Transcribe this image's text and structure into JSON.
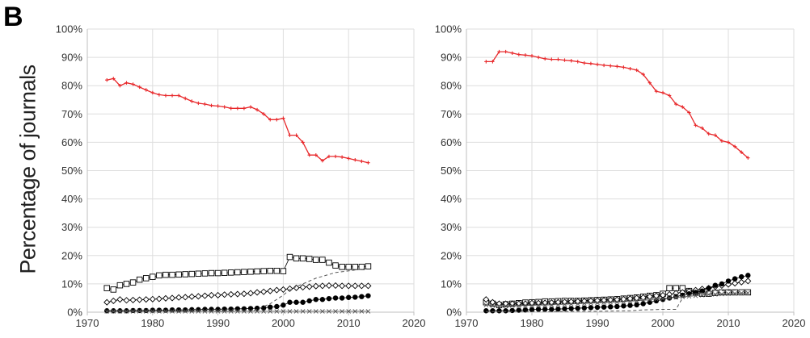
{
  "figure": {
    "panel_label": "B",
    "ylabel": "Percentage of journals"
  },
  "colors": {
    "red_series": "#e8282b",
    "black": "#000000",
    "grid": "#dedede",
    "axis": "#bfbfbf",
    "dashed": "#555555"
  },
  "chart_data": [
    {
      "type": "line",
      "xlim": [
        1970,
        2020
      ],
      "ylim": [
        0,
        100
      ],
      "xticks": [
        "1970",
        "1980",
        "1990",
        "2000",
        "2010",
        "2020"
      ],
      "yticks": [
        "0%",
        "10%",
        "20%",
        "30%",
        "40%",
        "50%",
        "60%",
        "70%",
        "80%",
        "90%",
        "100%"
      ],
      "grid": true,
      "series": [
        {
          "marker": "plus",
          "color": "#e8282b",
          "x": [
            1973,
            1974,
            1975,
            1976,
            1977,
            1978,
            1979,
            1980,
            1981,
            1982,
            1983,
            1984,
            1985,
            1986,
            1987,
            1988,
            1989,
            1990,
            1991,
            1992,
            1993,
            1994,
            1995,
            1996,
            1997,
            1998,
            1999,
            2000,
            2001,
            2002,
            2003,
            2004,
            2005,
            2006,
            2007,
            2008,
            2009,
            2010,
            2011,
            2012,
            2013
          ],
          "y": [
            82,
            82.5,
            80,
            81,
            80.5,
            79.5,
            78.5,
            77.5,
            76.8,
            76.5,
            76.5,
            76.5,
            75.5,
            74.5,
            73.8,
            73.5,
            73,
            72.8,
            72.5,
            72,
            72,
            72,
            72.5,
            71.5,
            70,
            68,
            68,
            68.5,
            62.5,
            62.5,
            60,
            55.5,
            55.5,
            53.5,
            55,
            55,
            54.8,
            54.3,
            53.8,
            53.3,
            52.8
          ]
        },
        {
          "marker": "square",
          "color": "#000000",
          "x": [
            1973,
            1974,
            1975,
            1976,
            1977,
            1978,
            1979,
            1980,
            1981,
            1982,
            1983,
            1984,
            1985,
            1986,
            1987,
            1988,
            1989,
            1990,
            1991,
            1992,
            1993,
            1994,
            1995,
            1996,
            1997,
            1998,
            1999,
            2000,
            2001,
            2002,
            2003,
            2004,
            2005,
            2006,
            2007,
            2008,
            2009,
            2010,
            2011,
            2012,
            2013
          ],
          "y": [
            8.5,
            8,
            9.5,
            10,
            10.5,
            11.5,
            12,
            12.5,
            13,
            13.2,
            13.2,
            13.3,
            13.4,
            13.5,
            13.6,
            13.7,
            13.8,
            13.8,
            13.9,
            14,
            14.1,
            14.2,
            14.3,
            14.4,
            14.5,
            14.6,
            14.6,
            14.5,
            19.5,
            19,
            19,
            18.8,
            18.5,
            18.5,
            17.5,
            16.5,
            16,
            16,
            16,
            16,
            16.2
          ]
        },
        {
          "marker": "diamond",
          "color": "#000000",
          "x": [
            1973,
            1974,
            1975,
            1976,
            1977,
            1978,
            1979,
            1980,
            1981,
            1982,
            1983,
            1984,
            1985,
            1986,
            1987,
            1988,
            1989,
            1990,
            1991,
            1992,
            1993,
            1994,
            1995,
            1996,
            1997,
            1998,
            1999,
            2000,
            2001,
            2002,
            2003,
            2004,
            2005,
            2006,
            2007,
            2008,
            2009,
            2010,
            2011,
            2012,
            2013
          ],
          "y": [
            3.5,
            4,
            4.5,
            4.2,
            4.3,
            4.4,
            4.5,
            4.6,
            4.7,
            4.9,
            5,
            5.2,
            5.3,
            5.5,
            5.6,
            5.8,
            6,
            6,
            6.2,
            6.3,
            6.4,
            6.5,
            6.7,
            7,
            7.2,
            7.5,
            7.8,
            8,
            8.3,
            8.6,
            8.8,
            9,
            9.2,
            9.3,
            9.4,
            9.4,
            9.3,
            9.3,
            9.3,
            9.3,
            9.3
          ]
        },
        {
          "marker": "circle",
          "color": "#000000",
          "x": [
            1973,
            1974,
            1975,
            1976,
            1977,
            1978,
            1979,
            1980,
            1981,
            1982,
            1983,
            1984,
            1985,
            1986,
            1987,
            1988,
            1989,
            1990,
            1991,
            1992,
            1993,
            1994,
            1995,
            1996,
            1997,
            1998,
            1999,
            2000,
            2001,
            2002,
            2003,
            2004,
            2005,
            2006,
            2007,
            2008,
            2009,
            2010,
            2011,
            2012,
            2013
          ],
          "y": [
            0.5,
            0.5,
            0.5,
            0.5,
            0.6,
            0.6,
            0.6,
            0.7,
            0.7,
            0.7,
            0.8,
            0.8,
            0.8,
            0.9,
            0.9,
            1,
            1,
            1,
            1.1,
            1.1,
            1.2,
            1.2,
            1.3,
            1.4,
            1.5,
            1.8,
            2,
            2.5,
            3.5,
            3.5,
            3.5,
            4,
            4.5,
            4.5,
            4.8,
            5,
            5,
            5.2,
            5.3,
            5.5,
            5.8
          ]
        },
        {
          "marker": "x",
          "color": "#555555",
          "x": [
            1973,
            1974,
            1975,
            1976,
            1977,
            1978,
            1979,
            1980,
            1981,
            1982,
            1983,
            1984,
            1985,
            1986,
            1987,
            1988,
            1989,
            1990,
            1991,
            1992,
            1993,
            1994,
            1995,
            1996,
            1997,
            1998,
            1999,
            2000,
            2001,
            2002,
            2003,
            2004,
            2005,
            2006,
            2007,
            2008,
            2009,
            2010,
            2011,
            2012,
            2013
          ],
          "y": [
            0.3,
            0.3,
            0.3,
            0.3,
            0.3,
            0.3,
            0.3,
            0.3,
            0.3,
            0.3,
            0.3,
            0.3,
            0.3,
            0.3,
            0.3,
            0.3,
            0.3,
            0.3,
            0.3,
            0.3,
            0.3,
            0.3,
            0.3,
            0.3,
            0.3,
            0.3,
            0.3,
            0.3,
            0.3,
            0.3,
            0.3,
            0.3,
            0.3,
            0.3,
            0.3,
            0.3,
            0.3,
            0.3,
            0.3,
            0.3,
            0.3
          ]
        },
        {
          "marker": "none",
          "dashed": true,
          "color": "#555555",
          "x": [
            1973,
            1980,
            1990,
            1995,
            1996,
            1998,
            2000,
            2001,
            2003,
            2005,
            2008,
            2013
          ],
          "y": [
            0.3,
            0.3,
            0.3,
            0.3,
            1,
            3,
            6,
            8,
            10,
            12,
            14,
            15.5
          ]
        }
      ]
    },
    {
      "type": "line",
      "xlim": [
        1970,
        2020
      ],
      "ylim": [
        0,
        100
      ],
      "xticks": [
        "1970",
        "1980",
        "1990",
        "2000",
        "2010",
        "2020"
      ],
      "yticks": [
        "0%",
        "10%",
        "20%",
        "30%",
        "40%",
        "50%",
        "60%",
        "70%",
        "80%",
        "90%",
        "100%"
      ],
      "grid": true,
      "series": [
        {
          "marker": "plus",
          "color": "#e8282b",
          "x": [
            1973,
            1974,
            1975,
            1976,
            1977,
            1978,
            1979,
            1980,
            1981,
            1982,
            1983,
            1984,
            1985,
            1986,
            1987,
            1988,
            1989,
            1990,
            1991,
            1992,
            1993,
            1994,
            1995,
            1996,
            1997,
            1998,
            1999,
            2000,
            2001,
            2002,
            2003,
            2004,
            2005,
            2006,
            2007,
            2008,
            2009,
            2010,
            2011,
            2012,
            2013
          ],
          "y": [
            88.5,
            88.5,
            92,
            92,
            91.5,
            91,
            90.8,
            90.5,
            90,
            89.5,
            89.3,
            89.3,
            89,
            88.8,
            88.5,
            88,
            87.8,
            87.5,
            87.2,
            87,
            86.8,
            86.5,
            86,
            85.5,
            84,
            81,
            78,
            77.5,
            76.5,
            73.5,
            72.5,
            70.5,
            66,
            65,
            63,
            62.5,
            60.5,
            60,
            58.5,
            56.5,
            54.5
          ]
        },
        {
          "marker": "square",
          "color": "#000000",
          "x": [
            1973,
            1974,
            1975,
            1976,
            1977,
            1978,
            1979,
            1980,
            1981,
            1982,
            1983,
            1984,
            1985,
            1986,
            1987,
            1988,
            1989,
            1990,
            1991,
            1992,
            1993,
            1994,
            1995,
            1996,
            1997,
            1998,
            1999,
            2000,
            2001,
            2002,
            2003,
            2004,
            2005,
            2006,
            2007,
            2008,
            2009,
            2010,
            2011,
            2012,
            2013
          ],
          "y": [
            3.5,
            3,
            2.5,
            2.8,
            3,
            3.2,
            3.4,
            3.5,
            3.6,
            3.8,
            3.8,
            3.9,
            4,
            4,
            4,
            4.1,
            4.2,
            4.3,
            4.4,
            4.5,
            4.6,
            4.8,
            5,
            5.2,
            5.5,
            5.8,
            6,
            6.5,
            8.5,
            8.5,
            8.5,
            7.5,
            7,
            6.5,
            6.5,
            6.8,
            7,
            7,
            7,
            7,
            7
          ]
        },
        {
          "marker": "diamond",
          "color": "#000000",
          "x": [
            1973,
            1974,
            1975,
            1976,
            1977,
            1978,
            1979,
            1980,
            1981,
            1982,
            1983,
            1984,
            1985,
            1986,
            1987,
            1988,
            1989,
            1990,
            1991,
            1992,
            1993,
            1994,
            1995,
            1996,
            1997,
            1998,
            1999,
            2000,
            2001,
            2002,
            2003,
            2004,
            2005,
            2006,
            2007,
            2008,
            2009,
            2010,
            2011,
            2012,
            2013
          ],
          "y": [
            4.5,
            3.5,
            3,
            3,
            3,
            3,
            3,
            3.2,
            3.2,
            3.3,
            3.4,
            3.5,
            3.6,
            3.7,
            3.8,
            3.9,
            4,
            4.1,
            4.2,
            4.3,
            4.4,
            4.6,
            4.8,
            5,
            5.2,
            5.5,
            5.8,
            6,
            6.3,
            6.7,
            7,
            7.4,
            7.8,
            8.2,
            8.5,
            9,
            9.4,
            9.8,
            10.2,
            10.6,
            11
          ]
        },
        {
          "marker": "circle",
          "color": "#000000",
          "x": [
            1973,
            1974,
            1975,
            1976,
            1977,
            1978,
            1979,
            1980,
            1981,
            1982,
            1983,
            1984,
            1985,
            1986,
            1987,
            1988,
            1989,
            1990,
            1991,
            1992,
            1993,
            1994,
            1995,
            1996,
            1997,
            1998,
            1999,
            2000,
            2001,
            2002,
            2003,
            2004,
            2005,
            2006,
            2007,
            2008,
            2009,
            2010,
            2011,
            2012,
            2013
          ],
          "y": [
            0.5,
            0.5,
            0.5,
            0.5,
            0.6,
            0.7,
            0.8,
            0.9,
            1,
            1,
            1,
            1.1,
            1.2,
            1.3,
            1.4,
            1.5,
            1.6,
            1.7,
            1.8,
            1.9,
            2,
            2.2,
            2.4,
            2.6,
            3,
            3.5,
            4,
            4.5,
            5,
            5.5,
            6,
            6.5,
            7,
            7.5,
            8.5,
            9.5,
            10,
            11,
            11.8,
            12.5,
            13
          ]
        },
        {
          "marker": "x",
          "color": "#555555",
          "x": [
            1973,
            1974,
            1975,
            1976,
            1977,
            1978,
            1979,
            1980,
            1981,
            1982,
            1983,
            1984,
            1985,
            1986,
            1987,
            1988,
            1989,
            1990,
            1991,
            1992,
            1993,
            1994,
            1995,
            1996,
            1997,
            1998,
            1999,
            2000,
            2001,
            2002,
            2003,
            2004,
            2005,
            2006,
            2007,
            2008,
            2009,
            2010,
            2011,
            2012,
            2013
          ],
          "y": [
            2.5,
            2.3,
            2.2,
            2.2,
            2.3,
            2.3,
            2.4,
            2.4,
            2.5,
            2.5,
            2.6,
            2.7,
            2.8,
            2.9,
            3,
            3.1,
            3.2,
            3.3,
            3.4,
            3.5,
            3.6,
            3.7,
            3.9,
            4,
            4.2,
            4.4,
            4.6,
            4.8,
            5,
            5.2,
            5.4,
            5.6,
            5.8,
            6,
            6.2,
            6.3,
            6.4,
            6.5,
            6.6,
            6.7,
            6.8
          ]
        },
        {
          "marker": "none",
          "dashed": true,
          "color": "#555555",
          "x": [
            1973,
            1980,
            1990,
            1995,
            1997,
            2000,
            2002,
            2003,
            2005,
            2008,
            2013
          ],
          "y": [
            0.2,
            0.2,
            0.3,
            0.5,
            0.8,
            1,
            1,
            5,
            6.5,
            7.5,
            8
          ]
        }
      ]
    }
  ]
}
